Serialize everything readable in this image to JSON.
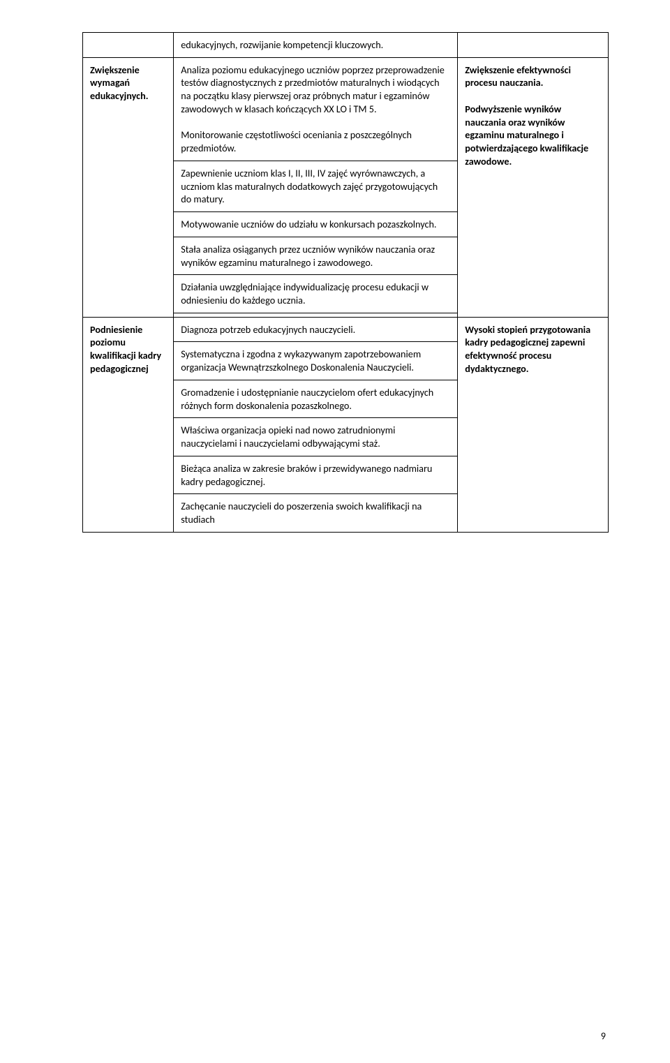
{
  "colors": {
    "page_bg": "#ffffff",
    "text": "#000000",
    "border": "#000000"
  },
  "typography": {
    "family": "Calibri",
    "body_pt": 11,
    "lineheight": 1.32
  },
  "page_number": "9",
  "rows": [
    {
      "c1": "",
      "c2": "edukacyjnych, rozwijanie kompetencji kluczowych.",
      "c3": "",
      "c1_class": "",
      "c2_class": "",
      "c3_class": "",
      "c1_rowspan": 1,
      "c2_rowspan": 1,
      "c3_rowspan": 1,
      "c1_present": true,
      "c3_present": true
    },
    {
      "c1": "Zwiększenie wymagań edukacyjnych.",
      "c2": "Analiza poziomu edukacyjnego uczniów poprzez przeprowadzenie testów diagnostycznych z przedmiotów maturalnych i wiodących na początku klasy pierwszej oraz próbnych matur i egzaminów zawodowych w klasach kończących XX LO i TM 5.\nMonitorowanie częstotliwości oceniania z poszczególnych przedmiotów.",
      "c3": "Zwiększenie efektywności procesu nauczania.\nPodwyższenie wyników nauczania oraz wyników egzaminu maturalnego i potwierdzającego kwalifikacje zawodowe.",
      "c1_class": "bold",
      "c2_class": "",
      "c3_class": "bold",
      "c1_rowspan": 6,
      "c2_rowspan": 1,
      "c3_rowspan": 6,
      "c1_present": true,
      "c3_present": true
    },
    {
      "c2": "Zapewnienie uczniom klas I, II, III, IV zajęć wyrównawczych, a uczniom klas maturalnych dodatkowych zajęć przygotowujących do matury.",
      "c2_class": "",
      "c1_present": false,
      "c3_present": false,
      "c1_rowspan": 1,
      "c3_rowspan": 1,
      "c1": "",
      "c3": "",
      "c1_class": "",
      "c3_class": ""
    },
    {
      "c2": "Motywowanie uczniów do udziału w konkursach pozaszkolnych.",
      "c2_class": "",
      "c1_present": false,
      "c3_present": false,
      "c1_rowspan": 1,
      "c3_rowspan": 1,
      "c1": "",
      "c3": "",
      "c1_class": "",
      "c3_class": ""
    },
    {
      "c2": "Stała analiza osiąganych przez uczniów wyników nauczania oraz wyników egzaminu maturalnego i zawodowego.",
      "c2_class": "",
      "c1_present": false,
      "c3_present": false,
      "c1_rowspan": 1,
      "c3_rowspan": 1,
      "c1": "",
      "c3": "",
      "c1_class": "",
      "c3_class": ""
    },
    {
      "c2": "Działania uwzględniające indywidualizację procesu edukacji w odniesieniu do każdego ucznia.",
      "c2_class": "",
      "c1_present": false,
      "c3_present": false,
      "c1_rowspan": 1,
      "c3_rowspan": 1,
      "c1": "",
      "c3": "",
      "c1_class": "",
      "c3_class": ""
    },
    {
      "c2": "",
      "c2_class": "",
      "c1_present": false,
      "c3_present": false,
      "c1_rowspan": 1,
      "c3_rowspan": 1,
      "c1": "",
      "c3": "",
      "c1_class": "",
      "c3_class": "",
      "c2_empty": true
    },
    {
      "c1": "Podniesienie poziomu kwalifikacji kadry pedagogicznej",
      "c2": "Diagnoza potrzeb edukacyjnych nauczycieli.",
      "c3": "Wysoki stopień przygotowania kadry pedagogicznej zapewni efektywność procesu dydaktycznego.",
      "c1_class": "bold",
      "c2_class": "",
      "c3_class": "bold",
      "c1_rowspan": 6,
      "c2_rowspan": 1,
      "c3_rowspan": 6,
      "c1_present": true,
      "c3_present": true
    },
    {
      "c2": "Systematyczna i zgodna z wykazywanym zapotrzebowaniem organizacja Wewnątrzszkolnego Doskonalenia Nauczycieli.",
      "c2_class": "",
      "c1_present": false,
      "c3_present": false,
      "c1_rowspan": 1,
      "c3_rowspan": 1,
      "c1": "",
      "c3": "",
      "c1_class": "",
      "c3_class": ""
    },
    {
      "c2": "Gromadzenie i udostępnianie nauczycielom ofert edukacyjnych różnych form doskonalenia pozaszkolnego.",
      "c2_class": "",
      "c1_present": false,
      "c3_present": false,
      "c1_rowspan": 1,
      "c3_rowspan": 1,
      "c1": "",
      "c3": "",
      "c1_class": "",
      "c3_class": ""
    },
    {
      "c2": "Właściwa organizacja opieki nad nowo zatrudnionymi nauczycielami i nauczycielami odbywającymi staż.",
      "c2_class": "",
      "c1_present": false,
      "c3_present": false,
      "c1_rowspan": 1,
      "c3_rowspan": 1,
      "c1": "",
      "c3": "",
      "c1_class": "",
      "c3_class": ""
    },
    {
      "c2": "Bieżąca analiza w zakresie braków i przewidywanego nadmiaru kadry pedagogicznej.",
      "c2_class": "",
      "c1_present": false,
      "c3_present": false,
      "c1_rowspan": 1,
      "c3_rowspan": 1,
      "c1": "",
      "c3": "",
      "c1_class": "",
      "c3_class": ""
    },
    {
      "c2": "Zachęcanie nauczycieli do poszerzenia swoich kwalifikacji na studiach",
      "c2_class": "",
      "c1_present": false,
      "c3_present": false,
      "c1_rowspan": 1,
      "c3_rowspan": 1,
      "c1": "",
      "c3": "",
      "c1_class": "",
      "c3_class": ""
    }
  ]
}
